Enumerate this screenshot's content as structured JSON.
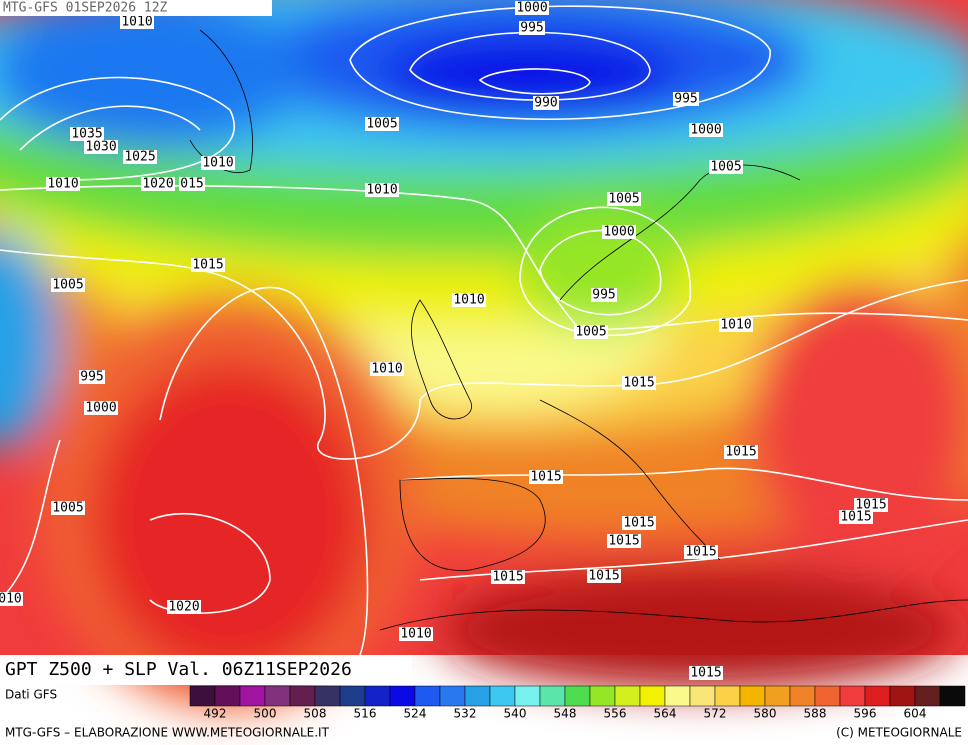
{
  "header": {
    "title": "MTG-GFS 01SEP2026 12Z"
  },
  "map": {
    "isobar_labels": [
      "1010",
      "1000",
      "995",
      "990",
      "995",
      "1005",
      "1000",
      "1035",
      "1030",
      "1025",
      "1010",
      "1005",
      "1010",
      "1020",
      "015",
      "1010",
      "1005",
      "1000",
      "1015",
      "1005",
      "995",
      "1010",
      "1010",
      "1005",
      "1010",
      "1015",
      "995",
      "1000",
      "1015",
      "1015",
      "1005",
      "1015",
      "1015",
      "1015",
      "1015",
      "1015",
      "1015",
      "1015",
      "1020",
      "010",
      "1010",
      "1015"
    ],
    "caption": "GPT Z500 + SLP Val. 06Z11SEP2026"
  },
  "legend": {
    "source": "Dati GFS",
    "colors": [
      "#3c0f3c",
      "#640f5a",
      "#a014a0",
      "#82327d",
      "#641e50",
      "#373264",
      "#1e3c8c",
      "#1423c8",
      "#0a0ae6",
      "#1e5af0",
      "#2878f0",
      "#28a0e6",
      "#3cc8f0",
      "#78f0f0",
      "#5ae6aa",
      "#50dc50",
      "#96e628",
      "#d2f01e",
      "#f0f000",
      "#fafa8c",
      "#fae678",
      "#fad246",
      "#f5b400",
      "#f0a01e",
      "#f08228",
      "#f06432",
      "#f03c3c",
      "#dc1e1e",
      "#a01414",
      "#641e1e",
      "#0a0a0a"
    ],
    "labels": [
      492,
      500,
      508,
      516,
      524,
      532,
      540,
      548,
      556,
      564,
      572,
      580,
      588,
      596,
      604
    ]
  },
  "footer": {
    "credit": "MTG-GFS – ELABORAZIONE WWW.METEOGIORNALE.IT",
    "copyright": "(C) METEOGIORNALE"
  }
}
